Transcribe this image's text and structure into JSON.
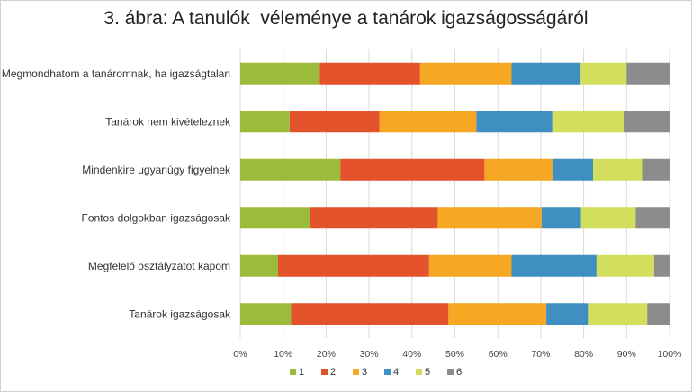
{
  "chart_data": {
    "type": "bar",
    "orientation": "horizontal",
    "stacked": "percent",
    "title": "3. ábra: A tanulók  véleménye a tanárok igazságosságáról",
    "categories": [
      "Megmondhatom a tanáromnak, ha igazságtalan",
      "Tanárok nem kivételeznek",
      "Mindenkire ugyanúgy figyelnek",
      "Fontos dolgokban igazságosak",
      "Megfelelő osztályzatot kapom",
      "Tanárok igazságosak"
    ],
    "series": [
      {
        "name": "1",
        "color": "#9bbb3b",
        "values": [
          18.5,
          11.5,
          23.3,
          16.3,
          8.8,
          11.8
        ]
      },
      {
        "name": "2",
        "color": "#e2532b",
        "values": [
          23.4,
          20.9,
          33.6,
          29.7,
          35.2,
          36.7
        ]
      },
      {
        "name": "3",
        "color": "#f5a623",
        "values": [
          21.3,
          22.6,
          15.8,
          24.2,
          19.2,
          22.8
        ]
      },
      {
        "name": "4",
        "color": "#3f8fc0",
        "values": [
          16.1,
          17.7,
          9.5,
          9.2,
          19.8,
          9.7
        ]
      },
      {
        "name": "5",
        "color": "#d3de5c",
        "values": [
          10.7,
          16.6,
          11.4,
          12.7,
          13.4,
          13.8
        ]
      },
      {
        "name": "6",
        "color": "#8c8c8c",
        "values": [
          10.0,
          10.7,
          6.4,
          7.9,
          3.6,
          5.2
        ]
      }
    ],
    "xlim": [
      0,
      100
    ],
    "xticks": [
      "0%",
      "10%",
      "20%",
      "30%",
      "40%",
      "50%",
      "60%",
      "70%",
      "80%",
      "90%",
      "100%"
    ],
    "grid": true,
    "legend": "bottom"
  }
}
